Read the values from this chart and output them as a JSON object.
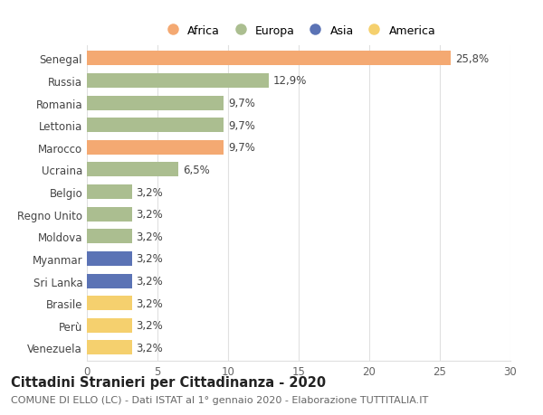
{
  "categories": [
    "Senegal",
    "Russia",
    "Romania",
    "Lettonia",
    "Marocco",
    "Ucraina",
    "Belgio",
    "Regno Unito",
    "Moldova",
    "Myanmar",
    "Sri Lanka",
    "Brasile",
    "Perù",
    "Venezuela"
  ],
  "values": [
    25.8,
    12.9,
    9.7,
    9.7,
    9.7,
    6.5,
    3.2,
    3.2,
    3.2,
    3.2,
    3.2,
    3.2,
    3.2,
    3.2
  ],
  "continents": [
    "Africa",
    "Europa",
    "Europa",
    "Europa",
    "Africa",
    "Europa",
    "Europa",
    "Europa",
    "Europa",
    "Asia",
    "Asia",
    "America",
    "America",
    "America"
  ],
  "colors": {
    "Africa": "#F4A972",
    "Europa": "#ABBE90",
    "Asia": "#5B73B5",
    "America": "#F5D06E"
  },
  "legend_order": [
    "Africa",
    "Europa",
    "Asia",
    "America"
  ],
  "title": "Cittadini Stranieri per Cittadinanza - 2020",
  "subtitle": "COMUNE DI ELLO (LC) - Dati ISTAT al 1° gennaio 2020 - Elaborazione TUTTITALIA.IT",
  "xlim": [
    0,
    30
  ],
  "xticks": [
    0,
    5,
    10,
    15,
    20,
    25,
    30
  ],
  "bar_height": 0.65,
  "label_fontsize": 8.5,
  "tick_fontsize": 8.5,
  "title_fontsize": 10.5,
  "subtitle_fontsize": 8,
  "background_color": "#ffffff",
  "grid_color": "#e0e0e0"
}
